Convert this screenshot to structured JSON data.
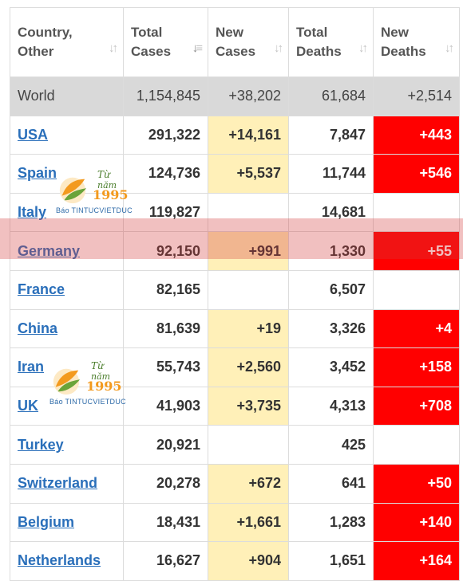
{
  "headers": [
    {
      "label": "Country, Other"
    },
    {
      "label": "Total Cases"
    },
    {
      "label": "New Cases"
    },
    {
      "label": "Total Deaths"
    },
    {
      "label": "New Deaths"
    }
  ],
  "world": {
    "country": "World",
    "total_cases": "1,154,845",
    "new_cases": "+38,202",
    "total_deaths": "61,684",
    "new_deaths": "+2,514"
  },
  "rows": [
    {
      "country": "USA",
      "total_cases": "291,322",
      "new_cases": "+14,161",
      "total_deaths": "7,847",
      "new_deaths": "+443"
    },
    {
      "country": "Spain",
      "total_cases": "124,736",
      "new_cases": "+5,537",
      "total_deaths": "11,744",
      "new_deaths": "+546"
    },
    {
      "country": "Italy",
      "total_cases": "119,827",
      "new_cases": "",
      "total_deaths": "14,681",
      "new_deaths": ""
    },
    {
      "country": "Germany",
      "total_cases": "92,150",
      "new_cases": "+991",
      "total_deaths": "1,330",
      "new_deaths": "+55"
    },
    {
      "country": "France",
      "total_cases": "82,165",
      "new_cases": "",
      "total_deaths": "6,507",
      "new_deaths": ""
    },
    {
      "country": "China",
      "total_cases": "81,639",
      "new_cases": "+19",
      "total_deaths": "3,326",
      "new_deaths": "+4"
    },
    {
      "country": "Iran",
      "total_cases": "55,743",
      "new_cases": "+2,560",
      "total_deaths": "3,452",
      "new_deaths": "+158"
    },
    {
      "country": "UK",
      "total_cases": "41,903",
      "new_cases": "+3,735",
      "total_deaths": "4,313",
      "new_deaths": "+708"
    },
    {
      "country": "Turkey",
      "total_cases": "20,921",
      "new_cases": "",
      "total_deaths": "425",
      "new_deaths": ""
    },
    {
      "country": "Switzerland",
      "total_cases": "20,278",
      "new_cases": "+672",
      "total_deaths": "641",
      "new_deaths": "+50"
    },
    {
      "country": "Belgium",
      "total_cases": "18,431",
      "new_cases": "+1,661",
      "total_deaths": "1,283",
      "new_deaths": "+140"
    },
    {
      "country": "Netherlands",
      "total_cases": "16,627",
      "new_cases": "+904",
      "total_deaths": "1,651",
      "new_deaths": "+164"
    }
  ],
  "highlighted_country": "Germany",
  "watermark": {
    "line1": "Từ",
    "line2": "năm",
    "year": "1995",
    "brand": "Báo TINTUCVIETDUC"
  },
  "colors": {
    "new_cases_bg": "#fff0b8",
    "new_deaths_bg": "#ff0000",
    "link": "#2a6fba",
    "world_bg": "#d9d9d9"
  }
}
